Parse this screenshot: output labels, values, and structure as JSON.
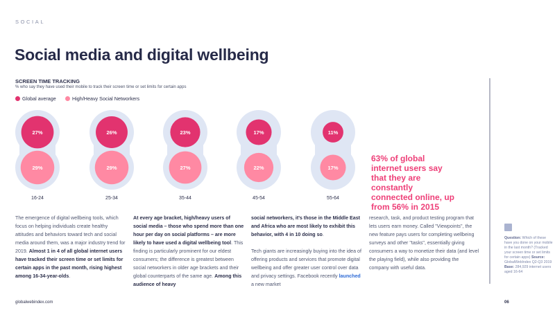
{
  "header": {
    "section": "SOCIAL",
    "title": "Social media and digital wellbeing"
  },
  "chart_data": {
    "type": "bubble-pair",
    "title": "SCREEN TIME TRACKING",
    "subtitle": "% who say they have used their mobile to track their screen time or set limits for certain apps",
    "categories": [
      "16-24",
      "25-34",
      "35-44",
      "45-54",
      "55-64"
    ],
    "series": [
      {
        "name": "Global average",
        "values": [
          27,
          26,
          23,
          17,
          11
        ],
        "color": "#e2336f"
      },
      {
        "name": "High/Heavy Social Networkers",
        "values": [
          29,
          29,
          27,
          22,
          17
        ],
        "color": "#ff89a3"
      }
    ],
    "background_color": "#dfe6f4",
    "unit": "%"
  },
  "stat": "63% of global internet users say that they are constantly connected online, up from 56% in 2015",
  "body": [
    [
      [
        {
          "t": "The emergence of digital wellbeing tools, which focus on helping individuals create healthy attitudes and behaviors toward tech and social media around them, was a major industry trend for 2019. "
        },
        {
          "t": "Almost 1 in 4 of all global internet users have tracked their screen time or set limits for certain apps in the past month, rising highest among 16-34-year-olds",
          "s": "b"
        },
        {
          "t": "."
        }
      ]
    ],
    [
      [
        {
          "t": "At every age bracket, high/heavy users of social media – those who spend more than one hour per day on social platforms – are more likely to have used a digital wellbeing tool",
          "s": "b"
        },
        {
          "t": ". This finding is particularly prominent for our eldest consumers; the difference is greatest between social networkers in older age brackets and their global counterparts of the same age. "
        },
        {
          "t": "Among this audience of heavy",
          "s": "b"
        }
      ]
    ],
    [
      [
        {
          "t": "social networkers, it's those in the Middle East and Africa who are most likely to exhibit this behavior, with 4 in 10 doing so",
          "s": "b"
        },
        {
          "t": "."
        }
      ],
      [
        {
          "t": "Tech giants are increasingly buying into the idea of offering products and services that promote digital wellbeing and offer greater user control over data and privacy settings. Facebook recently "
        },
        {
          "t": "launched",
          "s": "lnk"
        },
        {
          "t": " a new market"
        }
      ]
    ],
    [
      [
        {
          "t": "research, task, and product testing program that lets users earn money. Called \"Viewpoints\", the new feature pays users for completing wellbeing surveys and other \"tasks\", essentially giving consumers a way to monetize their data (and level the playing field), while also providing the company with useful data."
        }
      ]
    ]
  ],
  "note": {
    "q_label": "Question:",
    "q": "Which of these have you done on your mobile in the last month? (Tracked your screen time or set limits for certain apps)",
    "s_label": "Source:",
    "s": "GlobalWebIndex Q2-Q3 2019",
    "b_label": "Base:",
    "b": "284,929 internet users aged 16-64",
    "icon": "bar-chart-icon"
  },
  "footer": {
    "site": "globalwebindex.com",
    "page": "06"
  }
}
